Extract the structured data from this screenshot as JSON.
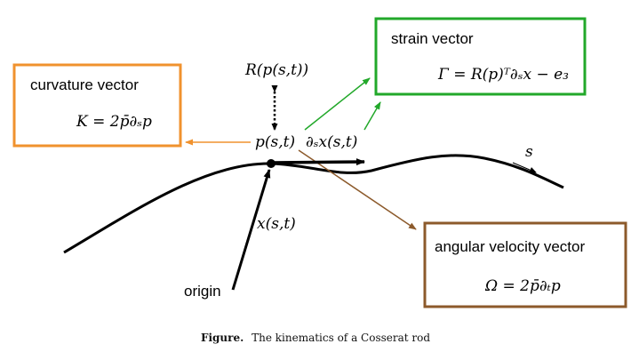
{
  "colors": {
    "curvature": "#f0922e",
    "strain": "#22a82a",
    "angular": "#8c5a2b",
    "ink": "#000000"
  },
  "labels": {
    "R_p": "R(p(s,t))",
    "p": "p(s,t)",
    "ds_x": "∂ₛx(s,t)",
    "x": "x(s,t)",
    "s": "s",
    "origin": "origin"
  },
  "boxes": {
    "curvature": {
      "title": "curvature vector",
      "formula": "K = 2p̄∂ₛp"
    },
    "strain": {
      "title": "strain vector",
      "formula": "Γ = R(p)ᵀ∂ₛx − e₃"
    },
    "angular": {
      "title": "angular velocity vector",
      "formula": "Ω = 2p̄∂ₜp"
    }
  },
  "caption": {
    "label": "Figure.",
    "text": "The kinematics of a Cosserat rod"
  }
}
